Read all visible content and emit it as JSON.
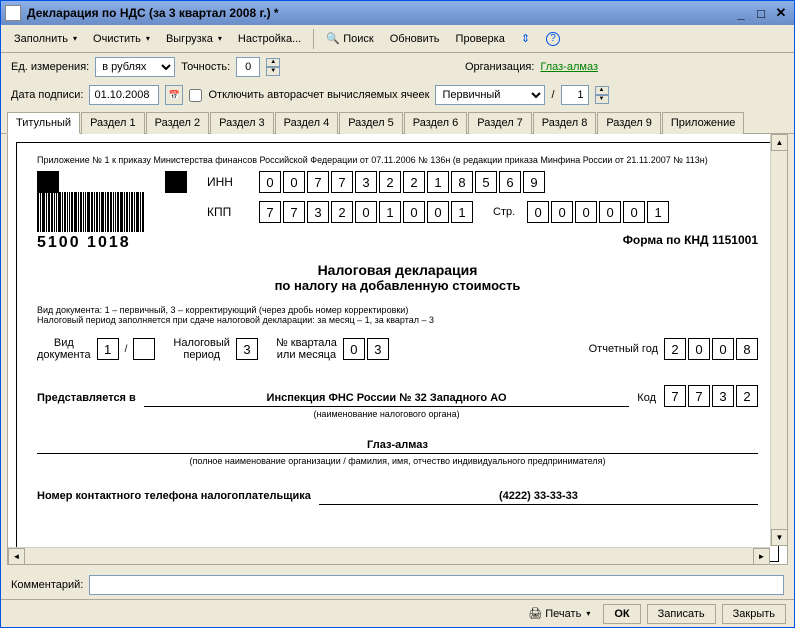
{
  "titlebar": {
    "title": "Декларация по НДС (за 3 квартал 2008 г.) *"
  },
  "toolbar": {
    "fill": "Заполнить",
    "clear": "Очистить",
    "upload": "Выгрузка",
    "settings": "Настройка...",
    "search": "Поиск",
    "refresh": "Обновить",
    "check": "Проверка"
  },
  "row1": {
    "unit_label": "Ед. измерения:",
    "unit_value": "в рублях",
    "precision_label": "Точность:",
    "precision_value": "0",
    "org_label": "Организация:",
    "org_value": "Глаз-алмаз"
  },
  "row2": {
    "date_label": "Дата подписи:",
    "date_value": "01.10.2008",
    "autocalc_label": "Отключить авторасчет вычисляемых ячеек",
    "primary_value": "Первичный",
    "slash": "/",
    "corr_value": "1"
  },
  "tabs": [
    "Титульный",
    "Раздел 1",
    "Раздел 2",
    "Раздел 3",
    "Раздел 4",
    "Раздел 5",
    "Раздел 6",
    "Раздел 7",
    "Раздел 8",
    "Раздел 9",
    "Приложение"
  ],
  "active_tab": 0,
  "doc": {
    "top_note": "Приложение № 1 к приказу Министерства финансов Российской Федерации от 07.11.2006 № 136н (в редакции приказа Минфина России от 21.11.2007 № 113н)",
    "barcode_num": "5100 1018",
    "inn_label": "ИНН",
    "inn": [
      "0",
      "0",
      "7",
      "7",
      "3",
      "2",
      "2",
      "1",
      "8",
      "5",
      "6",
      "9"
    ],
    "kpp_label": "КПП",
    "kpp": [
      "7",
      "7",
      "3",
      "2",
      "0",
      "1",
      "0",
      "0",
      "1"
    ],
    "page_label": "Стр.",
    "page": [
      "0",
      "0",
      "0",
      "0",
      "0",
      "1"
    ],
    "form_knd": "Форма по КНД 1151001",
    "title": "Налоговая декларация",
    "subtitle": "по налогу на добавленную стоимость",
    "hint1": "Вид документа: 1 – первичный, 3 – корректирующий (через дробь номер корректировки)",
    "hint2": "Налоговый период заполняется при сдаче налоговой декларации: за месяц – 1, за квартал – 3",
    "doc_type_label": "Вид\nдокумента",
    "doc_type": "1",
    "slash": "/",
    "tax_period_label": "Налоговый\nпериод",
    "tax_period": "3",
    "quarter_label": "№ квартала\nили месяца",
    "quarter": [
      "0",
      "3"
    ],
    "year_label": "Отчетный год",
    "year": [
      "2",
      "0",
      "0",
      "8"
    ],
    "presented_label": "Представляется в",
    "presented_value": "Инспекция ФНС России № 32 Западного АО",
    "presented_hint": "(наименование налогового органа)",
    "code_label": "Код",
    "code": [
      "7",
      "7",
      "3",
      "2"
    ],
    "org_value": "Глаз-алмаз",
    "org_hint": "(полное наименование организации / фамилия, имя, отчество индивидуального предпринимателя)",
    "phone_label": "Номер контактного телефона налогоплательщика",
    "phone_value": "(4222) 33-33-33"
  },
  "comment": {
    "label": "Комментарий:",
    "value": ""
  },
  "footer": {
    "print": "Печать",
    "ok": "ОК",
    "save": "Записать",
    "close": "Закрыть"
  }
}
